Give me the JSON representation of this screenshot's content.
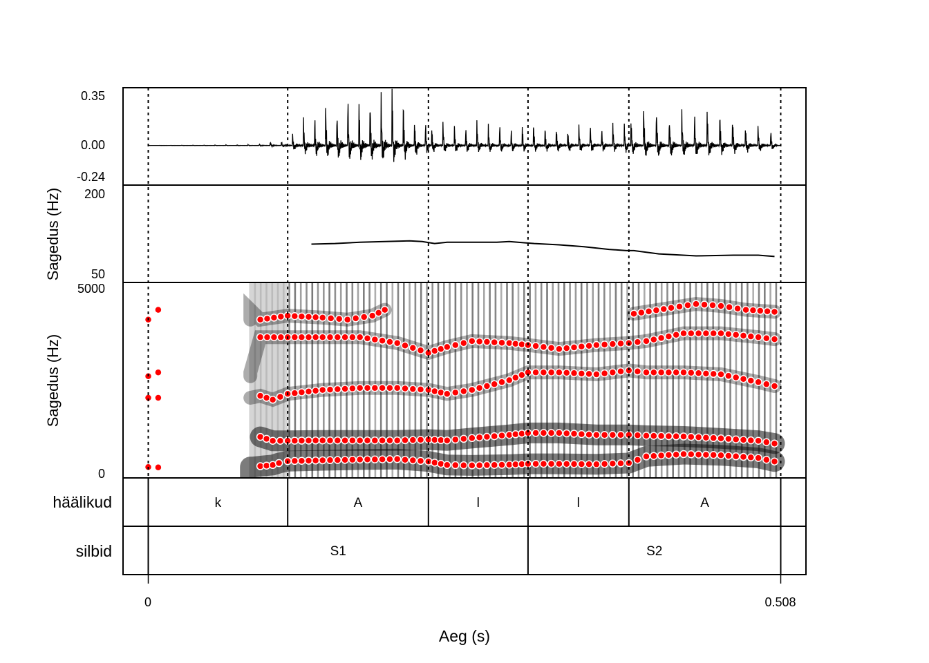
{
  "chart_data": {
    "type": "line",
    "title": "",
    "xlabel": "Aeg (s)",
    "xlim": [
      0,
      0.508
    ],
    "x_ticks": [
      "0",
      "0.508"
    ],
    "boundaries_s": [
      0,
      0.112,
      0.225,
      0.305,
      0.386,
      0.508
    ],
    "colors": {
      "formant": "#ff0000",
      "line": "#000000"
    },
    "waveform": {
      "y_ticks": [
        "0.35",
        "0.00",
        "-0.24"
      ],
      "ylim": [
        -0.24,
        0.35
      ],
      "description_series": "envelope",
      "envelope": [
        {
          "t": 0.0,
          "amp": 0.0
        },
        {
          "t": 0.085,
          "amp": 0.005
        },
        {
          "t": 0.11,
          "amp": 0.03
        },
        {
          "t": 0.13,
          "amp": 0.2
        },
        {
          "t": 0.16,
          "amp": 0.28
        },
        {
          "t": 0.2,
          "amp": 0.32
        },
        {
          "t": 0.225,
          "amp": 0.14
        },
        {
          "t": 0.3,
          "amp": 0.12
        },
        {
          "t": 0.38,
          "amp": 0.12
        },
        {
          "t": 0.4,
          "amp": 0.22
        },
        {
          "t": 0.45,
          "amp": 0.2
        },
        {
          "t": 0.5,
          "amp": 0.1
        },
        {
          "t": 0.508,
          "amp": 0.0
        }
      ]
    },
    "pitch": {
      "ylabel": "Sagedus (Hz)",
      "y_ticks": [
        "200",
        "50"
      ],
      "ylim": [
        50,
        200
      ],
      "series": [
        {
          "name": "F0",
          "x": [
            0.131,
            0.15,
            0.17,
            0.19,
            0.21,
            0.22,
            0.23,
            0.24,
            0.26,
            0.28,
            0.29,
            0.31,
            0.33,
            0.35,
            0.37,
            0.384,
            0.39,
            0.41,
            0.44,
            0.47,
            0.49,
            0.503
          ],
          "values": [
            109,
            110,
            112,
            113,
            114,
            113,
            110,
            112,
            112,
            112,
            113,
            110,
            108,
            105,
            101,
            99,
            99,
            94,
            91,
            92,
            92,
            90
          ]
        }
      ]
    },
    "spectrogram": {
      "ylabel": "Sagedus (Hz)",
      "y_ticks": [
        "5000",
        "0"
      ],
      "ylim": [
        0,
        5000
      ],
      "series": [
        {
          "name": "F1",
          "x": [
            0.0,
            0.008,
            0.09,
            0.1,
            0.105,
            0.112,
            0.14,
            0.17,
            0.2,
            0.225,
            0.24,
            0.26,
            0.29,
            0.305,
            0.33,
            0.36,
            0.386,
            0.4,
            0.43,
            0.46,
            0.49,
            0.503
          ],
          "values": [
            280,
            270,
            300,
            330,
            380,
            430,
            450,
            470,
            480,
            420,
            330,
            320,
            340,
            360,
            360,
            350,
            380,
            550,
            610,
            580,
            510,
            420
          ]
        },
        {
          "name": "F2",
          "x": [
            0.09,
            0.1,
            0.112,
            0.14,
            0.17,
            0.2,
            0.225,
            0.24,
            0.26,
            0.29,
            0.305,
            0.33,
            0.36,
            0.386,
            0.4,
            0.43,
            0.46,
            0.49,
            0.503
          ],
          "values": [
            1050,
            950,
            950,
            960,
            960,
            960,
            980,
            960,
            1020,
            1100,
            1150,
            1150,
            1100,
            1100,
            1080,
            1060,
            1010,
            950,
            880
          ]
        },
        {
          "name": "F3",
          "x": [
            0.0,
            0.008,
            0.09,
            0.1,
            0.112,
            0.14,
            0.17,
            0.2,
            0.225,
            0.24,
            0.26,
            0.29,
            0.305,
            0.33,
            0.36,
            0.386,
            0.4,
            0.43,
            0.46,
            0.49,
            0.503
          ],
          "values": [
            2050,
            2050,
            2100,
            2000,
            2150,
            2250,
            2300,
            2300,
            2250,
            2150,
            2250,
            2500,
            2700,
            2700,
            2650,
            2750,
            2700,
            2700,
            2650,
            2450,
            2350
          ]
        },
        {
          "name": "F4",
          "x": [
            0.0,
            0.008,
            0.09,
            0.112,
            0.14,
            0.17,
            0.2,
            0.225,
            0.24,
            0.26,
            0.29,
            0.305,
            0.33,
            0.36,
            0.386,
            0.4,
            0.43,
            0.46,
            0.49,
            0.503
          ],
          "values": [
            2600,
            2700,
            3600,
            3600,
            3600,
            3600,
            3450,
            3200,
            3350,
            3500,
            3450,
            3400,
            3300,
            3400,
            3450,
            3500,
            3700,
            3700,
            3600,
            3550
          ]
        },
        {
          "name": "F5",
          "x": [
            0.0,
            0.008,
            0.09,
            0.112,
            0.14,
            0.16,
            0.18,
            0.19
          ],
          "values": [
            4050,
            4300,
            4050,
            4150,
            4100,
            4050,
            4150,
            4300
          ]
        },
        {
          "name": "F5b",
          "x": [
            0.39,
            0.42,
            0.44,
            0.46,
            0.48,
            0.503
          ],
          "values": [
            4200,
            4350,
            4450,
            4400,
            4300,
            4250
          ]
        }
      ]
    },
    "tiers": [
      {
        "name": "häälikud",
        "segments": [
          {
            "label": "k",
            "start": 0.0,
            "end": 0.112
          },
          {
            "label": "A",
            "start": 0.112,
            "end": 0.225
          },
          {
            "label": "l",
            "start": 0.225,
            "end": 0.305
          },
          {
            "label": "l",
            "start": 0.305,
            "end": 0.386
          },
          {
            "label": "A",
            "start": 0.386,
            "end": 0.508
          }
        ]
      },
      {
        "name": "silbid",
        "segments": [
          {
            "label": "S1",
            "start": 0.0,
            "end": 0.305
          },
          {
            "label": "S2",
            "start": 0.305,
            "end": 0.508
          }
        ]
      }
    ]
  }
}
